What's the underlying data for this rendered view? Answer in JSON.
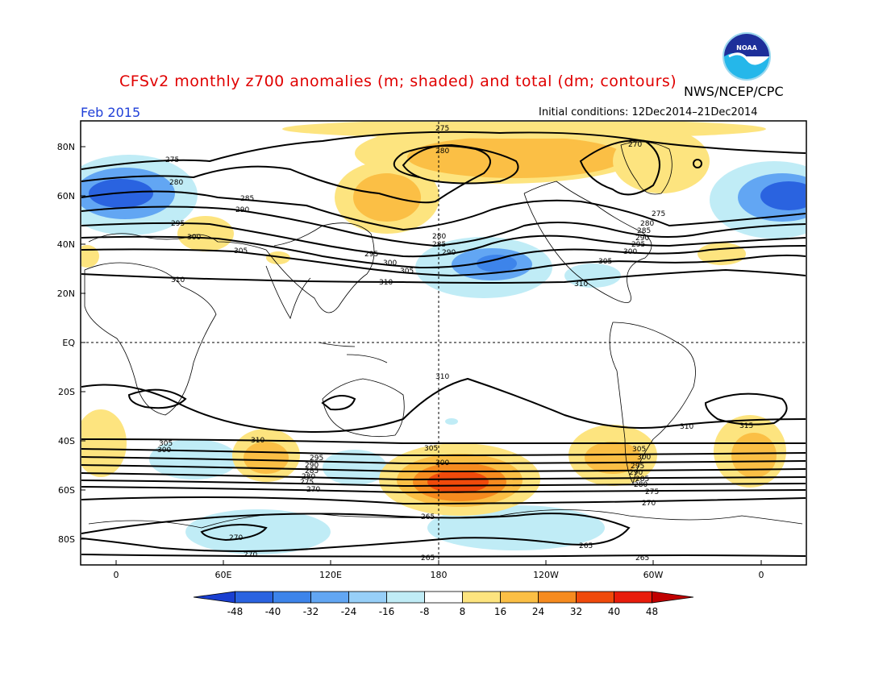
{
  "header": {
    "title": "CFSv2 monthly z700 anomalies (m; shaded) and total (dm; contours)",
    "org_label": "NWS/NCEP/CPC",
    "logo_text": "NOAA",
    "valid_month": "Feb 2015",
    "initial_conditions": "Initial conditions: 12Dec2014–21Dec2014"
  },
  "map": {
    "lat_labels": [
      "80N",
      "60N",
      "40N",
      "20N",
      "EQ",
      "20S",
      "40S",
      "60S",
      "80S"
    ],
    "lon_labels": [
      "0",
      "60E",
      "120E",
      "180",
      "120W",
      "60W",
      "0"
    ]
  },
  "colorbar": {
    "labels": [
      "-48",
      "-40",
      "-32",
      "-24",
      "-16",
      "-8",
      "8",
      "16",
      "24",
      "32",
      "40",
      "48"
    ],
    "colors": [
      "#1a3fd0",
      "#2a63e0",
      "#3d84ea",
      "#62a6f3",
      "#97cff8",
      "#c0ecf6",
      "#ffffff",
      "#fde47f",
      "#fbbf45",
      "#f68b1f",
      "#f04a0b",
      "#e81c0b",
      "#c00000"
    ]
  },
  "contour_labels": {
    "nh_west": [
      "275",
      "280",
      "285",
      "290",
      "295",
      "300",
      "305",
      "310"
    ],
    "nh_pacific": [
      "280",
      "285",
      "290",
      "295",
      "300",
      "305",
      "310"
    ],
    "nh_top": [
      "275",
      "280",
      "270"
    ],
    "nh_east": [
      "275",
      "280",
      "285",
      "290",
      "295",
      "300",
      "305",
      "310"
    ],
    "sh_top": [
      "310",
      "310",
      "315"
    ],
    "sh_west": [
      "310",
      "305",
      "300",
      "295",
      "290",
      "285",
      "280",
      "275",
      "270"
    ],
    "sh_mid": [
      "305",
      "300"
    ],
    "sh_east": [
      "305",
      "300",
      "295",
      "290",
      "285",
      "280",
      "275",
      "270"
    ],
    "polar": [
      "270",
      "270",
      "265",
      "265",
      "265",
      "265"
    ]
  },
  "anomaly_colors": {
    "neg_light": "#c0ecf6",
    "neg_mid": "#97cff8",
    "neg_dark": "#3d84ea",
    "neg_darkest": "#2a63e0",
    "pos_light": "#fde47f",
    "pos_mid": "#fbbf45",
    "pos_strong": "#f68b1f",
    "pos_max": "#f04a0b"
  }
}
